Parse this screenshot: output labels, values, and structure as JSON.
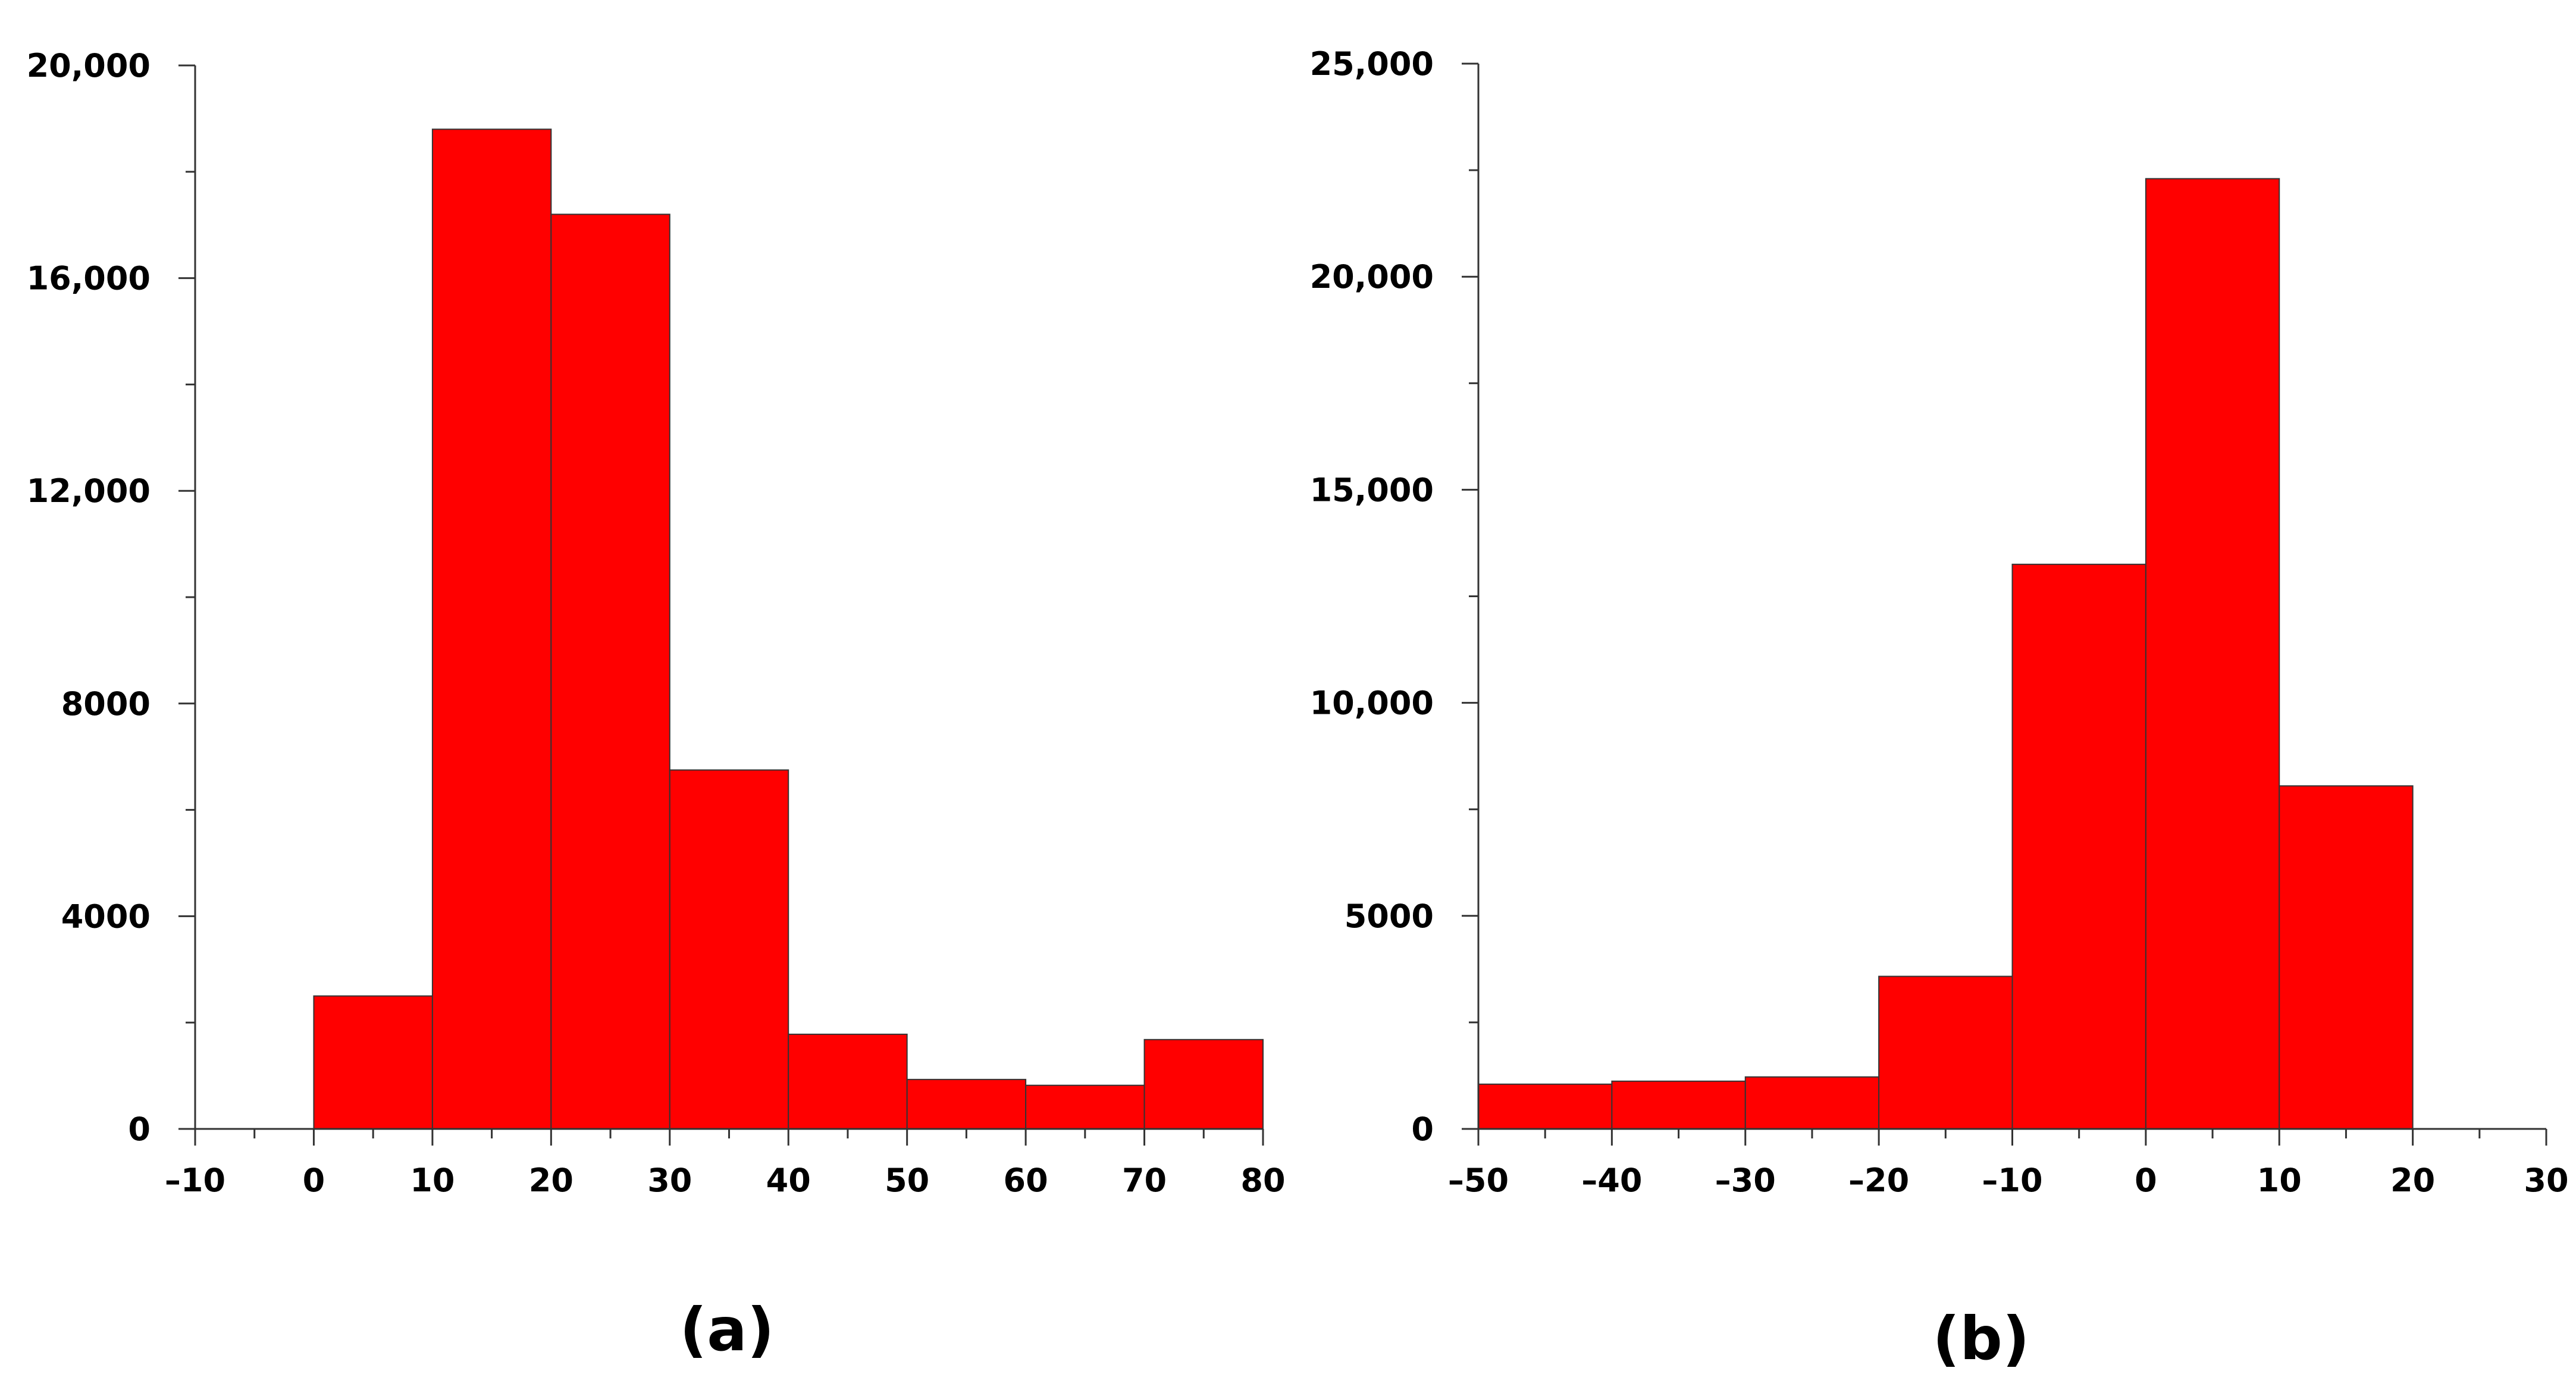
{
  "colors": {
    "bar_fill": "#ff0000",
    "bar_stroke": "#333333",
    "axis": "#333333"
  },
  "chart_data": [
    {
      "type": "bar",
      "panel_label": "(a)",
      "title": "",
      "xlabel": "",
      "ylabel": "",
      "xlim": [
        -10,
        80
      ],
      "ylim": [
        0,
        20000
      ],
      "x_major_ticks": [
        -10,
        0,
        10,
        20,
        30,
        40,
        50,
        60,
        70,
        80
      ],
      "x_minor_step": 5,
      "x_tick_labels": [
        "–10",
        "0",
        "10",
        "20",
        "30",
        "40",
        "50",
        "60",
        "70",
        "80"
      ],
      "y_major_ticks": [
        0,
        4000,
        8000,
        12000,
        16000,
        20000
      ],
      "y_minor_step": 2000,
      "y_tick_labels": [
        "0",
        "4000",
        "8000",
        "12,000",
        "16,000",
        "20,000"
      ],
      "bin_edges": [
        0,
        10,
        20,
        30,
        40,
        50,
        60,
        70,
        80
      ],
      "values": [
        2500,
        18800,
        17200,
        6750,
        1780,
        930,
        820,
        1680
      ],
      "grid": false,
      "legend": "none"
    },
    {
      "type": "bar",
      "panel_label": "(b)",
      "title": "",
      "xlabel": "",
      "ylabel": "",
      "xlim": [
        -50,
        30
      ],
      "ylim": [
        0,
        25000
      ],
      "x_major_ticks": [
        -50,
        -40,
        -30,
        -20,
        -10,
        0,
        10,
        20,
        30
      ],
      "x_minor_step": 5,
      "x_tick_labels": [
        "–50",
        "–40",
        "–30",
        "–20",
        "–10",
        "0",
        "10",
        "20",
        "30"
      ],
      "y_major_ticks": [
        0,
        5000,
        10000,
        15000,
        20000,
        25000
      ],
      "y_minor_step": 2500,
      "y_tick_labels": [
        "0",
        "5000",
        "10,000",
        "15,000",
        "20,000",
        "25,000"
      ],
      "bin_edges": [
        -50,
        -40,
        -30,
        -20,
        -10,
        0,
        10,
        20
      ],
      "values": [
        1050,
        1120,
        1220,
        3580,
        13250,
        22300,
        8050
      ],
      "grid": false,
      "legend": "none"
    }
  ]
}
